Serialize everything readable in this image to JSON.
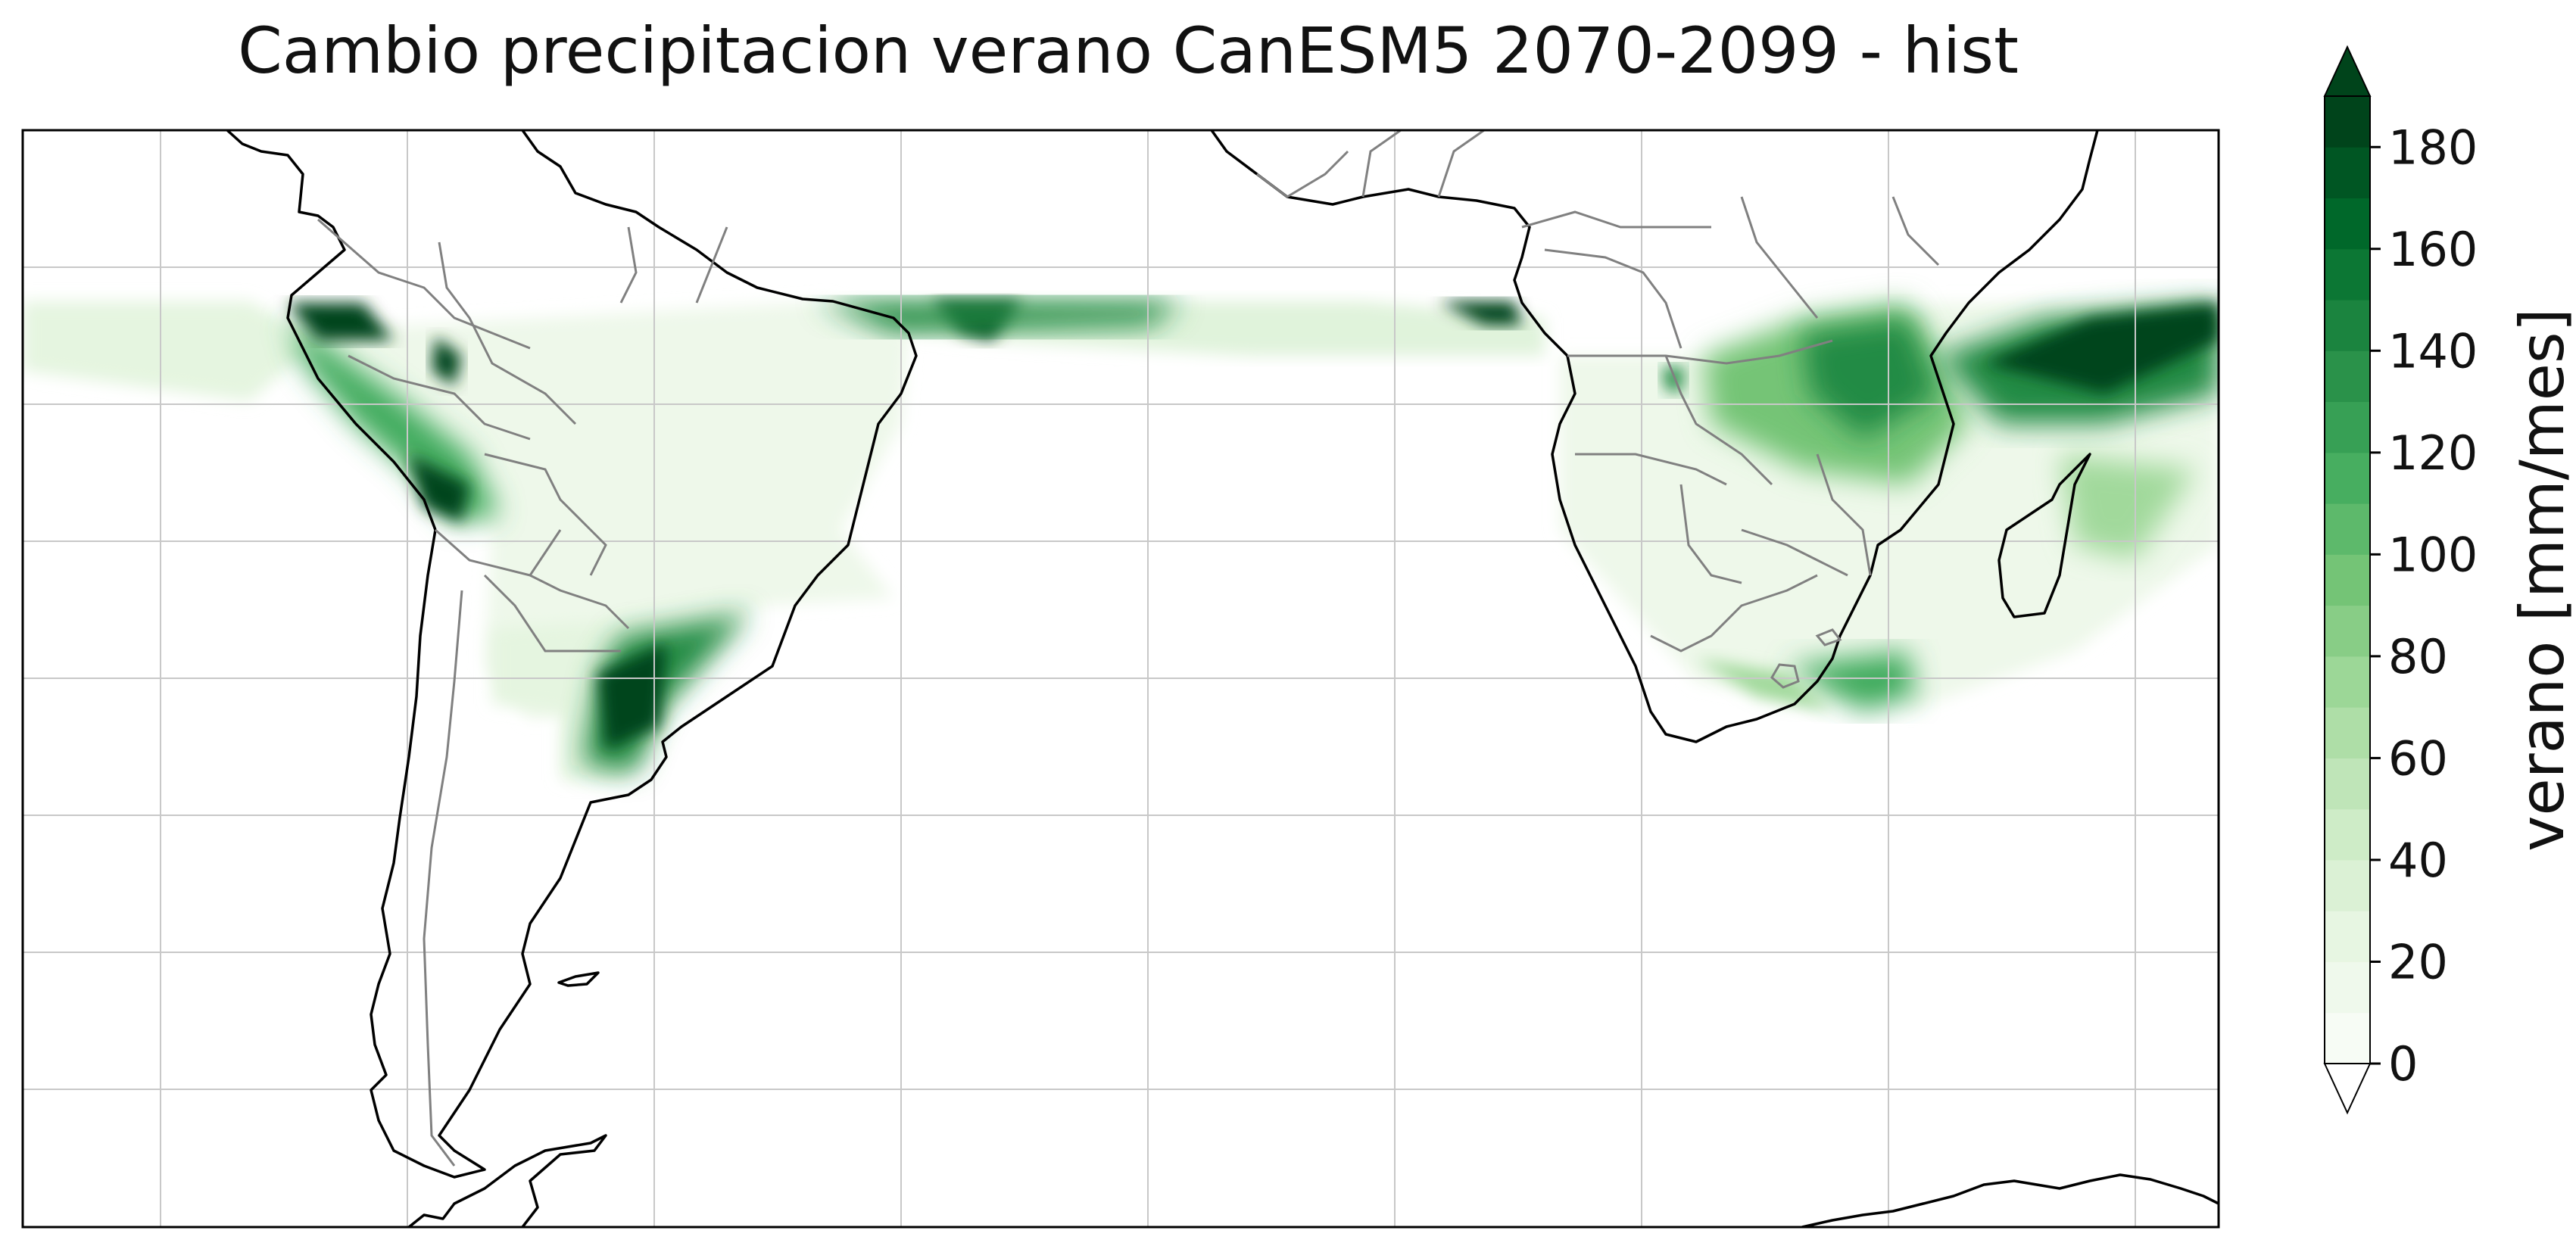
{
  "title": "Cambio precipitacion verano CanESM5 2070-2099 - hist",
  "colorbar": {
    "label": "verano [mm/mes]",
    "ticks": [
      "0",
      "20",
      "40",
      "60",
      "80",
      "100",
      "120",
      "140",
      "160",
      "180"
    ],
    "tick_values": [
      0,
      20,
      40,
      60,
      80,
      100,
      120,
      140,
      160,
      180
    ],
    "range": [
      0,
      190
    ],
    "extend": "both",
    "colors": [
      "#f7fcf5",
      "#e5f5e0",
      "#c7e9c0",
      "#a1d99b",
      "#74c476",
      "#41ab5d",
      "#238b45",
      "#006d2c",
      "#00441b"
    ]
  },
  "map": {
    "projection": "PlateCarree",
    "gridlines": true,
    "coastlines": true,
    "borders": true,
    "regions": [
      "South America",
      "Southern Africa"
    ]
  }
}
